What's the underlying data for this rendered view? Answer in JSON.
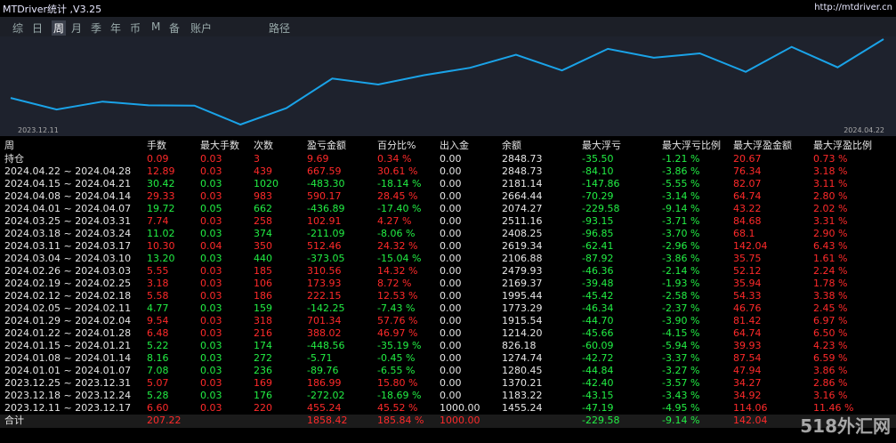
{
  "header": {
    "title": "MTDriver统计 ,V3.25",
    "url": "http://mtdriver.cn"
  },
  "tabs": [
    "综",
    "日",
    "周",
    "月",
    "季",
    "年",
    "币",
    "M",
    "备",
    "账户",
    "路径"
  ],
  "active_tab": 2,
  "chart": {
    "start_label": "2023.12.11",
    "end_label": "2024.04.22",
    "color": "#1aa3e8"
  },
  "table": {
    "columns": [
      "周",
      "手数",
      "最大手数",
      "次数",
      "盈亏金额",
      "百分比%",
      "出入金",
      "余额",
      "最大浮亏",
      "最大浮亏比例",
      "最大浮盈金额",
      "最大浮盈比例"
    ],
    "rows": [
      [
        "持仓",
        "0.09",
        "0.03",
        "3",
        "9.69",
        "0.34 %",
        "0.00",
        "2848.73",
        "-35.50",
        "-1.21 %",
        "20.67",
        "0.73 %"
      ],
      [
        "2024.04.22 ~ 2024.04.28",
        "12.89",
        "0.03",
        "439",
        "667.59",
        "30.61 %",
        "0.00",
        "2848.73",
        "-84.10",
        "-3.86 %",
        "76.34",
        "3.18 %"
      ],
      [
        "2024.04.15 ~ 2024.04.21",
        "30.42",
        "0.03",
        "1020",
        "-483.30",
        "-18.14 %",
        "0.00",
        "2181.14",
        "-147.86",
        "-5.55 %",
        "82.07",
        "3.11 %"
      ],
      [
        "2024.04.08 ~ 2024.04.14",
        "29.33",
        "0.03",
        "983",
        "590.17",
        "28.45 %",
        "0.00",
        "2664.44",
        "-70.29",
        "-3.14 %",
        "64.74",
        "2.80 %"
      ],
      [
        "2024.04.01 ~ 2024.04.07",
        "19.72",
        "0.05",
        "662",
        "-436.89",
        "-17.40 %",
        "0.00",
        "2074.27",
        "-229.58",
        "-9.14 %",
        "43.22",
        "2.02 %"
      ],
      [
        "2024.03.25 ~ 2024.03.31",
        "7.74",
        "0.03",
        "258",
        "102.91",
        "4.27 %",
        "0.00",
        "2511.16",
        "-93.15",
        "-3.71 %",
        "84.68",
        "3.31 %"
      ],
      [
        "2024.03.18 ~ 2024.03.24",
        "11.02",
        "0.03",
        "374",
        "-211.09",
        "-8.06 %",
        "0.00",
        "2408.25",
        "-96.85",
        "-3.70 %",
        "68.1",
        "2.90 %"
      ],
      [
        "2024.03.11 ~ 2024.03.17",
        "10.30",
        "0.04",
        "350",
        "512.46",
        "24.32 %",
        "0.00",
        "2619.34",
        "-62.41",
        "-2.96 %",
        "142.04",
        "6.43 %"
      ],
      [
        "2024.03.04 ~ 2024.03.10",
        "13.20",
        "0.03",
        "440",
        "-373.05",
        "-15.04 %",
        "0.00",
        "2106.88",
        "-87.92",
        "-3.86 %",
        "35.75",
        "1.61 %"
      ],
      [
        "2024.02.26 ~ 2024.03.03",
        "5.55",
        "0.03",
        "185",
        "310.56",
        "14.32 %",
        "0.00",
        "2479.93",
        "-46.36",
        "-2.14 %",
        "52.12",
        "2.24 %"
      ],
      [
        "2024.02.19 ~ 2024.02.25",
        "3.18",
        "0.03",
        "106",
        "173.93",
        "8.72 %",
        "0.00",
        "2169.37",
        "-39.48",
        "-1.93 %",
        "35.94",
        "1.78 %"
      ],
      [
        "2024.02.12 ~ 2024.02.18",
        "5.58",
        "0.03",
        "186",
        "222.15",
        "12.53 %",
        "0.00",
        "1995.44",
        "-45.42",
        "-2.58 %",
        "54.33",
        "3.38 %"
      ],
      [
        "2024.02.05 ~ 2024.02.11",
        "4.77",
        "0.03",
        "159",
        "-142.25",
        "-7.43 %",
        "0.00",
        "1773.29",
        "-46.34",
        "-2.37 %",
        "46.76",
        "2.45 %"
      ],
      [
        "2024.01.29 ~ 2024.02.04",
        "9.54",
        "0.03",
        "318",
        "701.34",
        "57.76 %",
        "0.00",
        "1915.54",
        "-44.70",
        "-3.90 %",
        "81.42",
        "6.97 %"
      ],
      [
        "2024.01.22 ~ 2024.01.28",
        "6.48",
        "0.03",
        "216",
        "388.02",
        "46.97 %",
        "0.00",
        "1214.20",
        "-45.66",
        "-4.15 %",
        "64.74",
        "6.50 %"
      ],
      [
        "2024.01.15 ~ 2024.01.21",
        "5.22",
        "0.03",
        "174",
        "-448.56",
        "-35.19 %",
        "0.00",
        "826.18",
        "-60.09",
        "-5.94 %",
        "39.93",
        "4.23 %"
      ],
      [
        "2024.01.08 ~ 2024.01.14",
        "8.16",
        "0.03",
        "272",
        "-5.71",
        "-0.45 %",
        "0.00",
        "1274.74",
        "-42.72",
        "-3.37 %",
        "87.54",
        "6.59 %"
      ],
      [
        "2024.01.01 ~ 2024.01.07",
        "7.08",
        "0.03",
        "236",
        "-89.76",
        "-6.55 %",
        "0.00",
        "1280.45",
        "-44.84",
        "-3.27 %",
        "47.94",
        "3.86 %"
      ],
      [
        "2023.12.25 ~ 2023.12.31",
        "5.07",
        "0.03",
        "169",
        "186.99",
        "15.80 %",
        "0.00",
        "1370.21",
        "-42.40",
        "-3.57 %",
        "34.27",
        "2.86 %"
      ],
      [
        "2023.12.18 ~ 2023.12.24",
        "5.28",
        "0.03",
        "176",
        "-272.02",
        "-18.69 %",
        "0.00",
        "1183.22",
        "-43.15",
        "-3.43 %",
        "34.92",
        "3.16 %"
      ],
      [
        "2023.12.11 ~ 2023.12.17",
        "6.60",
        "0.03",
        "220",
        "455.24",
        "45.52 %",
        "1000.00",
        "1455.24",
        "-47.19",
        "-4.95 %",
        "114.06",
        "11.46 %"
      ]
    ],
    "total": [
      "合计",
      "207.22",
      "",
      "",
      "1858.42",
      "185.84 %",
      "1000.00",
      "",
      "-229.58",
      "-9.14 %",
      "142.04",
      ""
    ]
  },
  "watermark": "518外汇网"
}
